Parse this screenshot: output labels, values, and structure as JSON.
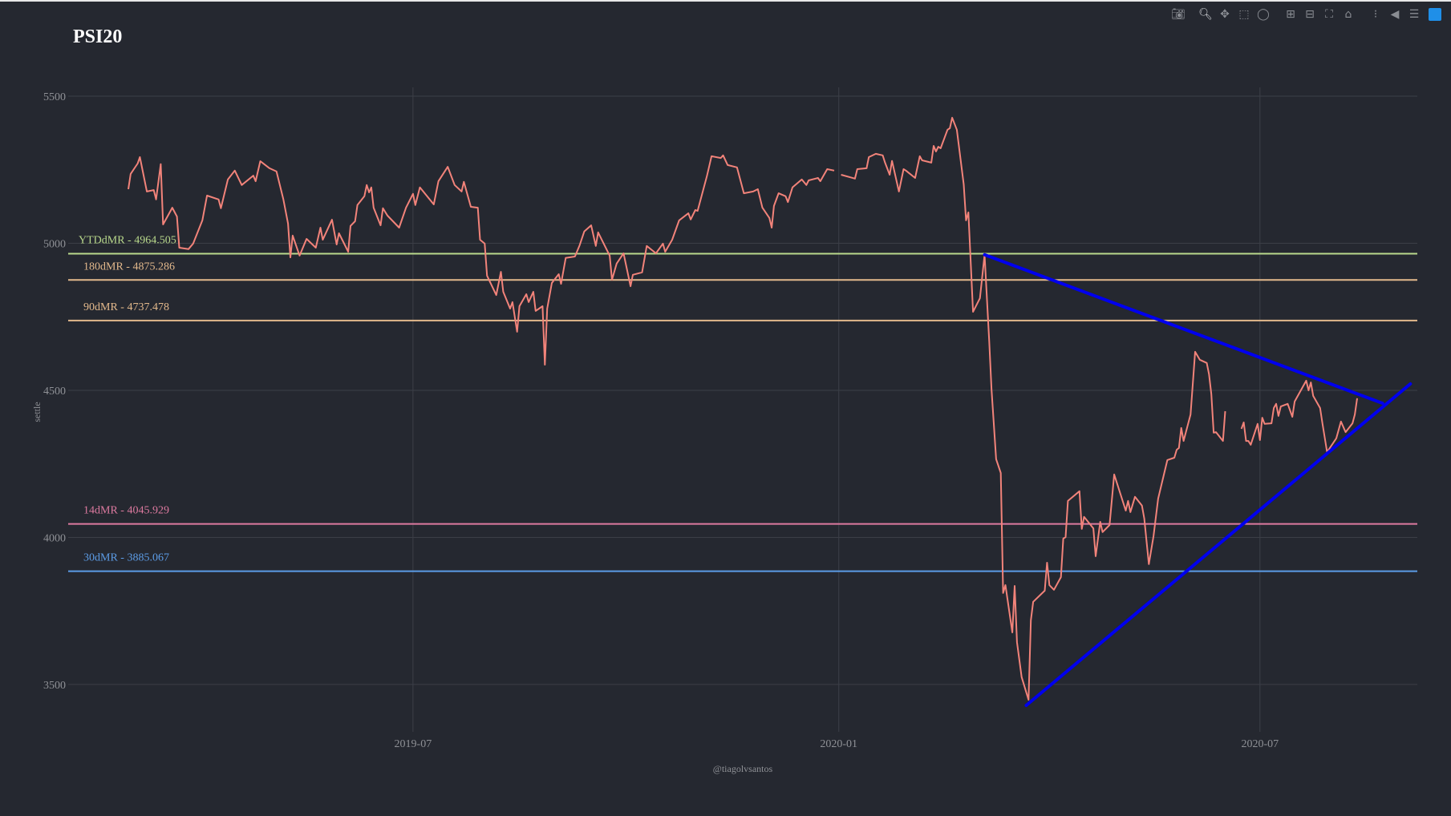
{
  "modebar": {
    "icons": [
      "camera-icon",
      "zoom-icon",
      "pan-icon",
      "box-select-icon",
      "lasso-select-icon",
      "zoom-in-icon",
      "zoom-out-icon",
      "autoscale-icon",
      "home-icon",
      "spike-lines-icon",
      "hover-closest-icon",
      "hover-compare-icon",
      "plotly-logo-icon"
    ]
  },
  "colors": {
    "background": "#252830",
    "grid": "#3c3f47",
    "price": "#f2837a",
    "trendline": "#0000ee",
    "tick_text": "#8f9196"
  },
  "chart_data": {
    "type": "line",
    "title": "PSI20",
    "xlabel": "@tiagolvsantos",
    "ylabel": "settle",
    "xlim": [
      "2019-02-02",
      "2020-09-07"
    ],
    "ylim": [
      3339,
      5530
    ],
    "grid": true,
    "legend": "none",
    "xticks": [
      {
        "date": "2019-07-01",
        "label": "2019-07"
      },
      {
        "date": "2020-01-01",
        "label": "2020-01"
      },
      {
        "date": "2020-07-01",
        "label": "2020-07"
      }
    ],
    "yticks": [
      {
        "value": 3500,
        "label": "3500"
      },
      {
        "value": 4000,
        "label": "4000"
      },
      {
        "value": 4500,
        "label": "4500"
      },
      {
        "value": 5000,
        "label": "5000"
      },
      {
        "value": 5500,
        "label": "5500"
      }
    ],
    "series": [
      {
        "color": "#f2837a",
        "points": [
          [
            "2019-02-28",
            5184
          ],
          [
            "2019-03-01",
            5236
          ],
          [
            "2019-03-04",
            5271
          ],
          [
            "2019-03-05",
            5293
          ],
          [
            "2019-03-08",
            5176
          ],
          [
            "2019-03-11",
            5181
          ],
          [
            "2019-03-12",
            5149
          ],
          [
            "2019-03-14",
            5269
          ],
          [
            "2019-03-15",
            5064
          ],
          [
            "2019-03-19",
            5121
          ],
          [
            "2019-03-21",
            5091
          ],
          [
            "2019-03-22",
            4985
          ],
          [
            "2019-03-26",
            4980
          ],
          [
            "2019-03-28",
            4999
          ],
          [
            "2019-04-01",
            5078
          ],
          [
            "2019-04-03",
            5162
          ],
          [
            "2019-04-08",
            5149
          ],
          [
            "2019-04-09",
            5119
          ],
          [
            "2019-04-12",
            5217
          ],
          [
            "2019-04-15",
            5247
          ],
          [
            "2019-04-18",
            5198
          ],
          [
            "2019-04-23",
            5230
          ],
          [
            "2019-04-24",
            5211
          ],
          [
            "2019-04-26",
            5279
          ],
          [
            "2019-04-30",
            5255
          ],
          [
            "2019-05-03",
            5244
          ],
          [
            "2019-05-06",
            5149
          ],
          [
            "2019-05-08",
            5067
          ],
          [
            "2019-05-09",
            4952
          ],
          [
            "2019-05-10",
            5026
          ],
          [
            "2019-05-13",
            4958
          ],
          [
            "2019-05-16",
            5015
          ],
          [
            "2019-05-20",
            4985
          ],
          [
            "2019-05-22",
            5053
          ],
          [
            "2019-05-23",
            5012
          ],
          [
            "2019-05-27",
            5080
          ],
          [
            "2019-05-29",
            4996
          ],
          [
            "2019-05-30",
            5034
          ],
          [
            "2019-06-03",
            4971
          ],
          [
            "2019-06-04",
            5059
          ],
          [
            "2019-06-06",
            5075
          ],
          [
            "2019-06-07",
            5130
          ],
          [
            "2019-06-10",
            5160
          ],
          [
            "2019-06-11",
            5198
          ],
          [
            "2019-06-12",
            5173
          ],
          [
            "2019-06-13",
            5190
          ],
          [
            "2019-06-14",
            5121
          ],
          [
            "2019-06-17",
            5061
          ],
          [
            "2019-06-18",
            5119
          ],
          [
            "2019-06-20",
            5094
          ],
          [
            "2019-06-25",
            5053
          ],
          [
            "2019-06-28",
            5121
          ],
          [
            "2019-07-01",
            5168
          ],
          [
            "2019-07-02",
            5130
          ],
          [
            "2019-07-04",
            5190
          ],
          [
            "2019-07-10",
            5132
          ],
          [
            "2019-07-12",
            5211
          ],
          [
            "2019-07-16",
            5260
          ],
          [
            "2019-07-19",
            5198
          ],
          [
            "2019-07-22",
            5176
          ],
          [
            "2019-07-23",
            5209
          ],
          [
            "2019-07-26",
            5124
          ],
          [
            "2019-07-29",
            5121
          ],
          [
            "2019-07-30",
            5012
          ],
          [
            "2019-08-01",
            4999
          ],
          [
            "2019-08-02",
            4890
          ],
          [
            "2019-08-06",
            4824
          ],
          [
            "2019-08-08",
            4903
          ],
          [
            "2019-08-09",
            4835
          ],
          [
            "2019-08-12",
            4778
          ],
          [
            "2019-08-13",
            4800
          ],
          [
            "2019-08-15",
            4699
          ],
          [
            "2019-08-16",
            4786
          ],
          [
            "2019-08-19",
            4827
          ],
          [
            "2019-08-20",
            4800
          ],
          [
            "2019-08-22",
            4835
          ],
          [
            "2019-08-23",
            4770
          ],
          [
            "2019-08-26",
            4786
          ],
          [
            "2019-08-27",
            4587
          ],
          [
            "2019-08-28",
            4778
          ],
          [
            "2019-08-30",
            4865
          ],
          [
            "2019-09-02",
            4895
          ],
          [
            "2019-09-03",
            4862
          ],
          [
            "2019-09-05",
            4950
          ],
          [
            "2019-09-09",
            4955
          ],
          [
            "2019-09-11",
            4993
          ],
          [
            "2019-09-13",
            5040
          ],
          [
            "2019-09-16",
            5061
          ],
          [
            "2019-09-18",
            4991
          ],
          [
            "2019-09-19",
            5037
          ],
          [
            "2019-09-24",
            4958
          ],
          [
            "2019-09-25",
            4876
          ],
          [
            "2019-09-27",
            4931
          ],
          [
            "2019-09-30",
            4966
          ],
          [
            "2019-10-03",
            4854
          ],
          [
            "2019-10-04",
            4893
          ],
          [
            "2019-10-08",
            4901
          ],
          [
            "2019-10-10",
            4991
          ],
          [
            "2019-10-14",
            4966
          ],
          [
            "2019-10-17",
            4999
          ],
          [
            "2019-10-18",
            4971
          ],
          [
            "2019-10-21",
            5012
          ],
          [
            "2019-10-24",
            5078
          ],
          [
            "2019-10-28",
            5102
          ],
          [
            "2019-10-29",
            5081
          ],
          [
            "2019-10-31",
            5113
          ],
          [
            "2019-11-01",
            5110
          ],
          [
            "2019-11-05",
            5228
          ],
          [
            "2019-11-07",
            5296
          ],
          [
            "2019-11-11",
            5290
          ],
          [
            "2019-11-12",
            5299
          ],
          [
            "2019-11-14",
            5266
          ],
          [
            "2019-11-18",
            5258
          ],
          [
            "2019-11-21",
            5170
          ],
          [
            "2019-11-25",
            5176
          ],
          [
            "2019-11-27",
            5184
          ],
          [
            "2019-11-29",
            5121
          ],
          [
            "2019-12-02",
            5086
          ],
          [
            "2019-12-03",
            5053
          ],
          [
            "2019-12-04",
            5127
          ],
          [
            "2019-12-06",
            5170
          ],
          [
            "2019-12-09",
            5160
          ],
          [
            "2019-12-10",
            5140
          ],
          [
            "2019-12-12",
            5190
          ],
          [
            "2019-12-16",
            5217
          ],
          [
            "2019-12-18",
            5198
          ],
          [
            "2019-12-19",
            5214
          ],
          [
            "2019-12-23",
            5222
          ],
          [
            "2019-12-24",
            5211
          ],
          [
            "2019-12-27",
            5252
          ],
          [
            "2019-12-30",
            5247
          ],
          [
            "2019-12-31",
            null
          ],
          [
            "2020-01-02",
            5233
          ],
          [
            "2020-01-08",
            5220
          ],
          [
            "2020-01-09",
            5252
          ],
          [
            "2020-01-13",
            5255
          ],
          [
            "2020-01-14",
            5293
          ],
          [
            "2020-01-17",
            5304
          ],
          [
            "2020-01-20",
            5299
          ],
          [
            "2020-01-21",
            5274
          ],
          [
            "2020-01-23",
            5233
          ],
          [
            "2020-01-24",
            5280
          ],
          [
            "2020-01-27",
            5176
          ],
          [
            "2020-01-29",
            5252
          ],
          [
            "2020-01-30",
            5247
          ],
          [
            "2020-02-03",
            5222
          ],
          [
            "2020-02-05",
            5296
          ],
          [
            "2020-02-06",
            5282
          ],
          [
            "2020-02-10",
            5274
          ],
          [
            "2020-02-11",
            5331
          ],
          [
            "2020-02-12",
            5312
          ],
          [
            "2020-02-13",
            5328
          ],
          [
            "2020-02-14",
            5323
          ],
          [
            "2020-02-17",
            5386
          ],
          [
            "2020-02-18",
            5391
          ],
          [
            "2020-02-19",
            5427
          ],
          [
            "2020-02-21",
            5386
          ],
          [
            "2020-02-24",
            5200
          ],
          [
            "2020-02-25",
            5078
          ],
          [
            "2020-02-26",
            5105
          ],
          [
            "2020-02-28",
            4767
          ],
          [
            "2020-03-02",
            4813
          ],
          [
            "2020-03-04",
            4961
          ],
          [
            "2020-03-06",
            4666
          ],
          [
            "2020-03-07",
            4506
          ],
          [
            "2020-03-09",
            4266
          ],
          [
            "2020-03-11",
            4219
          ],
          [
            "2020-03-12",
            3811
          ],
          [
            "2020-03-13",
            3838
          ],
          [
            "2020-03-16",
            3677
          ],
          [
            "2020-03-17",
            3835
          ],
          [
            "2020-03-18",
            3644
          ],
          [
            "2020-03-20",
            3525
          ],
          [
            "2020-03-23",
            3448
          ],
          [
            "2020-03-24",
            3718
          ],
          [
            "2020-03-25",
            3781
          ],
          [
            "2020-03-30",
            3819
          ],
          [
            "2020-03-31",
            3914
          ],
          [
            "2020-04-01",
            3838
          ],
          [
            "2020-04-03",
            3822
          ],
          [
            "2020-04-06",
            3865
          ],
          [
            "2020-04-07",
            3996
          ],
          [
            "2020-04-08",
            4001
          ],
          [
            "2020-04-09",
            4124
          ],
          [
            "2020-04-14",
            4157
          ],
          [
            "2020-04-15",
            4029
          ],
          [
            "2020-04-16",
            4070
          ],
          [
            "2020-04-20",
            4031
          ],
          [
            "2020-04-21",
            3936
          ],
          [
            "2020-04-23",
            4053
          ],
          [
            "2020-04-24",
            4018
          ],
          [
            "2020-04-27",
            4042
          ],
          [
            "2020-04-29",
            4214
          ],
          [
            "2020-05-04",
            4091
          ],
          [
            "2020-05-05",
            4124
          ],
          [
            "2020-05-06",
            4086
          ],
          [
            "2020-05-08",
            4138
          ],
          [
            "2020-05-11",
            4108
          ],
          [
            "2020-05-12",
            4064
          ],
          [
            "2020-05-14",
            3909
          ],
          [
            "2020-05-16",
            4004
          ],
          [
            "2020-05-18",
            4132
          ],
          [
            "2020-05-22",
            4263
          ],
          [
            "2020-05-25",
            4271
          ],
          [
            "2020-05-26",
            4298
          ],
          [
            "2020-05-27",
            4304
          ],
          [
            "2020-05-28",
            4372
          ],
          [
            "2020-05-29",
            4328
          ],
          [
            "2020-06-01",
            4418
          ],
          [
            "2020-06-03",
            4631
          ],
          [
            "2020-06-05",
            4604
          ],
          [
            "2020-06-08",
            4593
          ],
          [
            "2020-06-09",
            4555
          ],
          [
            "2020-06-10",
            4487
          ],
          [
            "2020-06-11",
            4356
          ],
          [
            "2020-06-12",
            4358
          ],
          [
            "2020-06-15",
            4328
          ],
          [
            "2020-06-16",
            4429
          ],
          [
            "2020-06-19",
            null
          ],
          [
            "2020-06-23",
            4369
          ],
          [
            "2020-06-24",
            4391
          ],
          [
            "2020-06-25",
            4328
          ],
          [
            "2020-06-26",
            4328
          ],
          [
            "2020-06-27",
            4315
          ],
          [
            "2020-06-30",
            4386
          ],
          [
            "2020-07-01",
            4331
          ],
          [
            "2020-07-02",
            4407
          ],
          [
            "2020-07-03",
            4386
          ],
          [
            "2020-07-06",
            4388
          ],
          [
            "2020-07-07",
            4440
          ],
          [
            "2020-07-08",
            4454
          ],
          [
            "2020-07-09",
            4413
          ],
          [
            "2020-07-10",
            4445
          ],
          [
            "2020-07-13",
            4454
          ],
          [
            "2020-07-15",
            4410
          ],
          [
            "2020-07-16",
            4462
          ],
          [
            "2020-07-21",
            4533
          ],
          [
            "2020-07-22",
            4500
          ],
          [
            "2020-07-23",
            4527
          ],
          [
            "2020-07-24",
            4481
          ],
          [
            "2020-07-27",
            4440
          ],
          [
            "2020-07-28",
            4388
          ],
          [
            "2020-07-30",
            4290
          ],
          [
            "2020-08-03",
            4337
          ],
          [
            "2020-08-05",
            4394
          ],
          [
            "2020-08-07",
            4358
          ],
          [
            "2020-08-10",
            4388
          ],
          [
            "2020-08-11",
            4418
          ],
          [
            "2020-08-12",
            4473
          ]
        ]
      }
    ],
    "hlines": [
      {
        "label": "YTDdMR - 4964.505",
        "value": 4964.505,
        "color": "#b9d98c"
      },
      {
        "label": "180dMR - 4875.286",
        "value": 4875.286,
        "color": "#e3b98c"
      },
      {
        "label": "90dMR - 4737.478",
        "value": 4737.478,
        "color": "#e3b98c"
      },
      {
        "label": "14dMR - 4045.929",
        "value": 4045.929,
        "color": "#dd7aa0"
      },
      {
        "label": "30dMR - 3885.067",
        "value": 3885.067,
        "color": "#5c9ce6"
      }
    ],
    "trendlines": [
      {
        "color": "#0000ee",
        "from": [
          "2020-03-04",
          4961
        ],
        "to": [
          "2020-08-23",
          4456
        ]
      },
      {
        "color": "#0000ee",
        "from": [
          "2020-03-22",
          3429
        ],
        "to": [
          "2020-09-04",
          4522
        ]
      }
    ]
  }
}
